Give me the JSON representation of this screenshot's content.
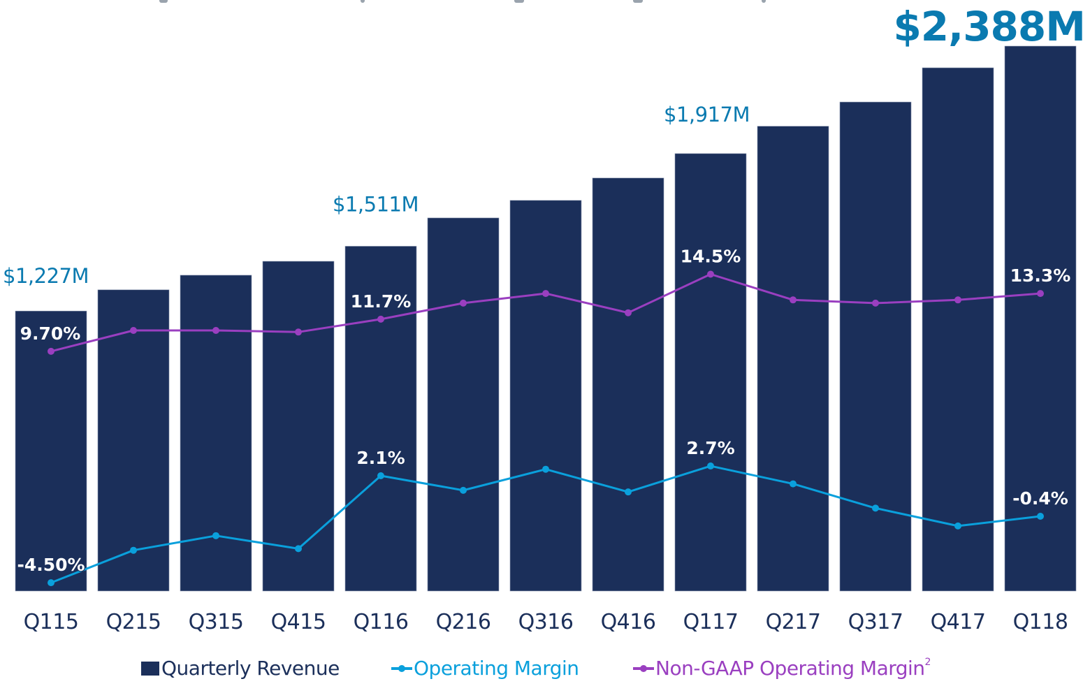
{
  "chart_data": {
    "type": "bar",
    "title": "",
    "xlabel": "",
    "ylabel": "",
    "categories": [
      "Q115",
      "Q215",
      "Q315",
      "Q415",
      "Q116",
      "Q216",
      "Q316",
      "Q416",
      "Q117",
      "Q217",
      "Q317",
      "Q417",
      "Q118"
    ],
    "series": [
      {
        "name": "Quarterly Revenue",
        "kind": "bar",
        "unit": "$M",
        "color": "#1b2f5a",
        "values": [
          1227,
          1320,
          1384,
          1445,
          1511,
          1635,
          1712,
          1810,
          1917,
          2037,
          2143,
          2293,
          2388
        ]
      },
      {
        "name": "Operating Margin",
        "kind": "line",
        "unit": "%",
        "color": "#0aa0dc",
        "values": [
          -4.5,
          -2.5,
          -1.6,
          -2.4,
          2.1,
          1.2,
          2.5,
          1.1,
          2.7,
          1.6,
          0.1,
          -1.0,
          -0.4
        ]
      },
      {
        "name": "Non-GAAP Operating Margin",
        "name_superscript": "2",
        "kind": "line",
        "unit": "%",
        "color": "#9a3fc0",
        "values": [
          9.7,
          11.0,
          11.0,
          10.9,
          11.7,
          12.7,
          13.3,
          12.1,
          14.5,
          12.9,
          12.7,
          12.9,
          13.3
        ]
      }
    ],
    "revenue_annotations": [
      {
        "index": 0,
        "text": "$1,227M"
      },
      {
        "index": 4,
        "text": "$1,511M"
      },
      {
        "index": 8,
        "text": "$1,917M"
      },
      {
        "index": 12,
        "text": "$2,388M",
        "emphasis": true
      }
    ],
    "operating_margin_annotations": [
      {
        "index": 0,
        "text": "-4.50%"
      },
      {
        "index": 4,
        "text": "2.1%"
      },
      {
        "index": 8,
        "text": "2.7%"
      },
      {
        "index": 12,
        "text": "-0.4%"
      }
    ],
    "non_gaap_annotations": [
      {
        "index": 0,
        "text": "9.70%"
      },
      {
        "index": 4,
        "text": "11.7%"
      },
      {
        "index": 8,
        "text": "14.5%"
      },
      {
        "index": 12,
        "text": "13.3%"
      }
    ],
    "ylim_revenue": [
      0,
      2388
    ],
    "grid": false,
    "legend_position": "bottom"
  },
  "legend": {
    "items": [
      {
        "label": "Quarterly Revenue",
        "sup": "",
        "color": "#1b2f5a",
        "type": "square"
      },
      {
        "label": "Operating Margin",
        "sup": "",
        "color": "#0aa0dc",
        "type": "line"
      },
      {
        "label": "Non-GAAP Operating Margin",
        "sup": "2",
        "color": "#9a3fc0",
        "type": "line"
      }
    ]
  },
  "colors": {
    "bar": "#1b2f5a",
    "revenue_label": "#0a7ab0",
    "operating_margin": "#0aa0dc",
    "non_gaap": "#9a3fc0",
    "axis_text": "#1b2f5a"
  }
}
